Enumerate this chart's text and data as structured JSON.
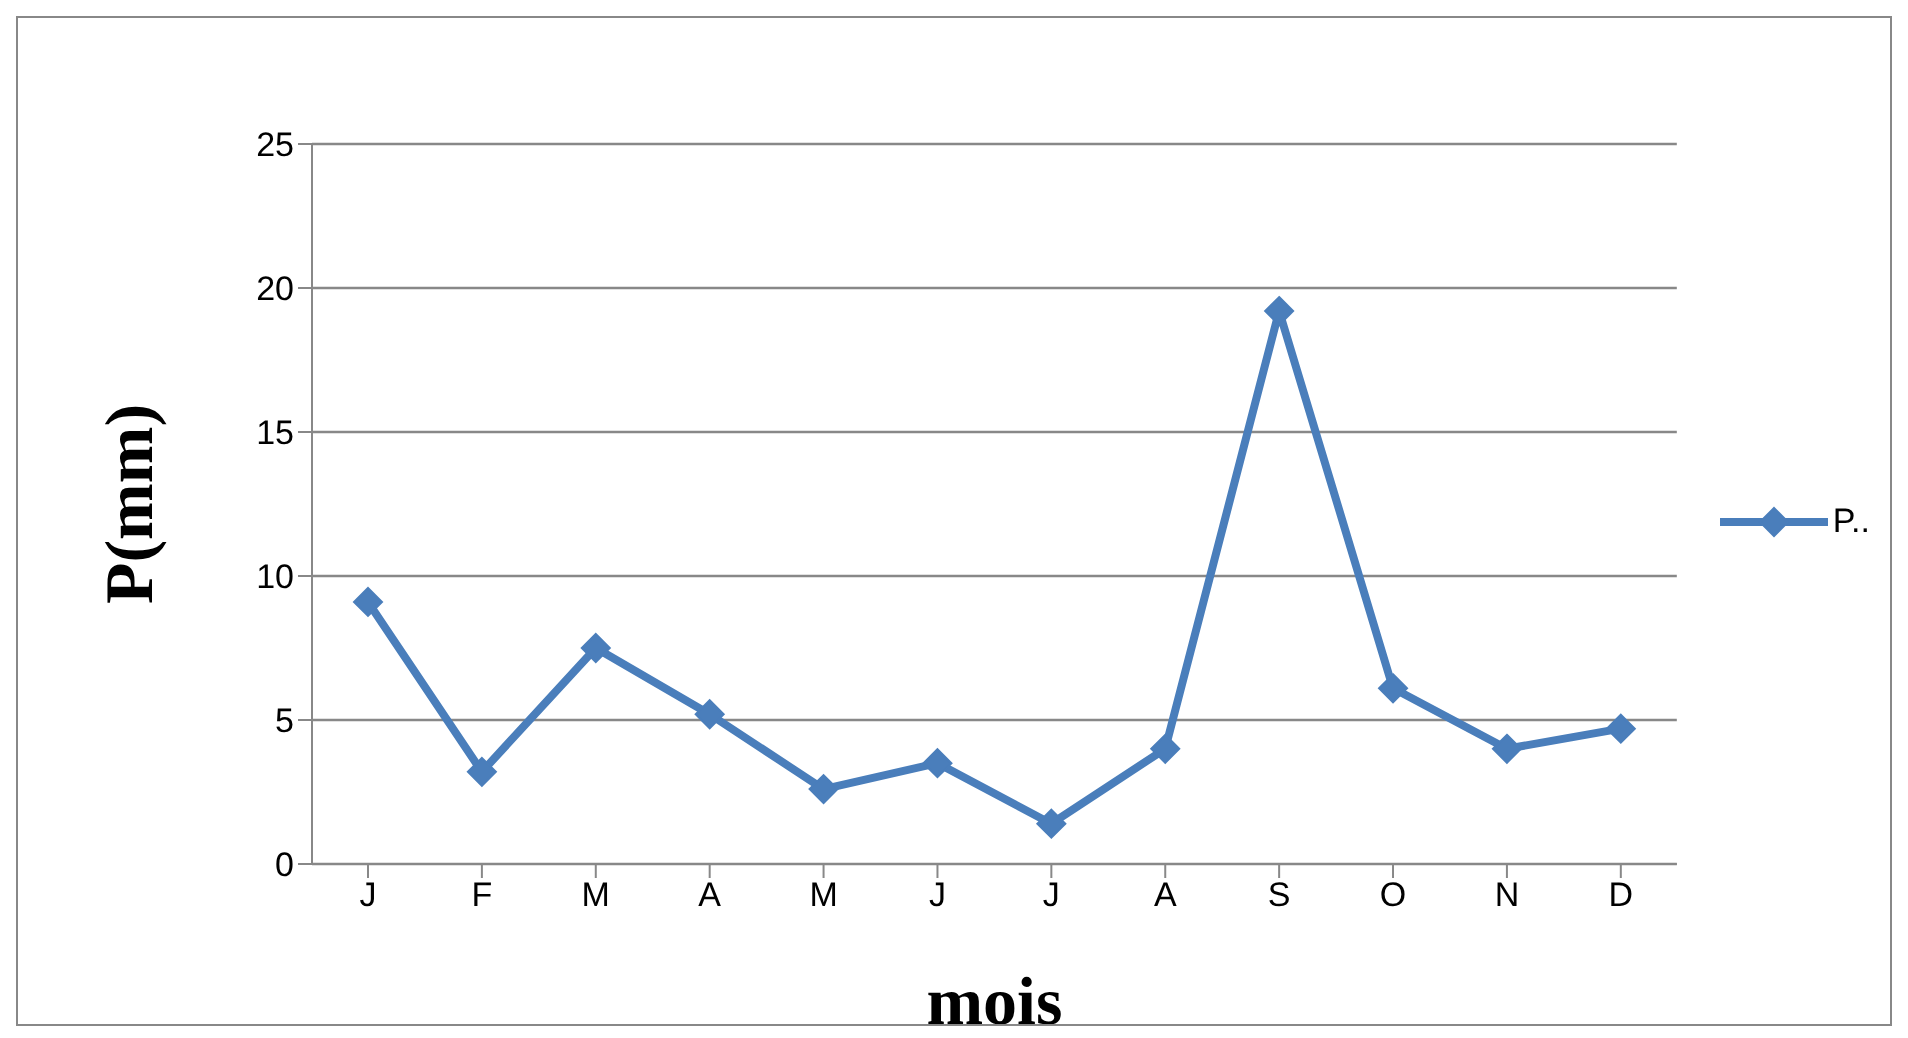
{
  "chart_data": {
    "type": "line",
    "xlabel": "mois",
    "ylabel": "P(mm)",
    "categories": [
      "J",
      "F",
      "M",
      "A",
      "M",
      "J",
      "J",
      "A",
      "S",
      "O",
      "N",
      "D"
    ],
    "series": [
      {
        "name": "P..",
        "color": "#4a7ebb",
        "values": [
          9.1,
          3.2,
          7.5,
          5.2,
          2.6,
          3.5,
          1.4,
          4.0,
          19.2,
          6.1,
          4.0,
          4.7
        ]
      }
    ],
    "ylim": [
      0,
      25
    ],
    "yticks": [
      0,
      5,
      10,
      15,
      20,
      25
    ],
    "grid": "y",
    "legend": "right",
    "marker": "diamond",
    "line_style": "solid"
  }
}
